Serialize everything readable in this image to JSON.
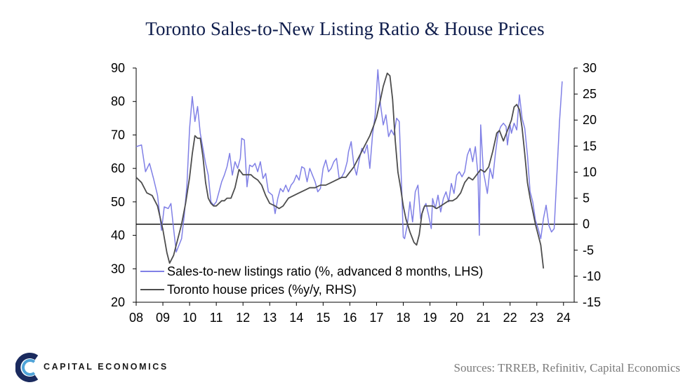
{
  "chart_data": {
    "type": "line",
    "title": "Toronto Sales-to-New Listing Ratio & House Prices",
    "x_tick_labels": [
      "08",
      "09",
      "10",
      "11",
      "12",
      "13",
      "14",
      "15",
      "16",
      "17",
      "18",
      "19",
      "20",
      "21",
      "22",
      "23",
      "24"
    ],
    "xlim": [
      2008,
      2024.4
    ],
    "y_left": {
      "ylim": [
        20,
        90
      ],
      "ticks": [
        "90",
        "80",
        "70",
        "60",
        "50",
        "40",
        "30",
        "20"
      ]
    },
    "y_right": {
      "ylim": [
        -15,
        30
      ],
      "ticks": [
        "30",
        "25",
        "20",
        "15",
        "10",
        "5",
        "0",
        "-5",
        "-10",
        "-15"
      ]
    },
    "zero_line_right": 0,
    "grid": false,
    "legend_position": "bottom-left inside plot",
    "series": [
      {
        "name": "Sales-to-new listings ratio (%, advanced 8 months, LHS)",
        "axis": "left",
        "color": "#8080e6",
        "points": [
          [
            2008.0,
            66.5
          ],
          [
            2008.2,
            67.0
          ],
          [
            2008.35,
            59.0
          ],
          [
            2008.5,
            61.5
          ],
          [
            2008.65,
            57.0
          ],
          [
            2008.8,
            52.0
          ],
          [
            2008.95,
            41.5
          ],
          [
            2009.05,
            48.5
          ],
          [
            2009.2,
            48.0
          ],
          [
            2009.3,
            49.5
          ],
          [
            2009.4,
            42.0
          ],
          [
            2009.5,
            35.0
          ],
          [
            2009.6,
            37.0
          ],
          [
            2009.7,
            39.0
          ],
          [
            2009.8,
            46.0
          ],
          [
            2009.9,
            55.0
          ],
          [
            2010.0,
            72.0
          ],
          [
            2010.1,
            81.5
          ],
          [
            2010.2,
            74.0
          ],
          [
            2010.3,
            78.5
          ],
          [
            2010.4,
            70.5
          ],
          [
            2010.5,
            66.0
          ],
          [
            2010.6,
            61.5
          ],
          [
            2010.7,
            58.0
          ],
          [
            2010.8,
            50.0
          ],
          [
            2010.9,
            49.0
          ],
          [
            2011.0,
            50.0
          ],
          [
            2011.1,
            53.0
          ],
          [
            2011.2,
            56.0
          ],
          [
            2011.3,
            58.0
          ],
          [
            2011.4,
            60.5
          ],
          [
            2011.5,
            64.5
          ],
          [
            2011.6,
            58.0
          ],
          [
            2011.7,
            62.0
          ],
          [
            2011.8,
            60.0
          ],
          [
            2011.9,
            63.0
          ],
          [
            2011.95,
            69.0
          ],
          [
            2012.05,
            68.5
          ],
          [
            2012.15,
            54.5
          ],
          [
            2012.25,
            61.0
          ],
          [
            2012.35,
            60.5
          ],
          [
            2012.45,
            61.5
          ],
          [
            2012.55,
            59.0
          ],
          [
            2012.65,
            62.0
          ],
          [
            2012.75,
            57.0
          ],
          [
            2012.85,
            58.5
          ],
          [
            2012.95,
            53.0
          ],
          [
            2013.1,
            52.0
          ],
          [
            2013.2,
            46.5
          ],
          [
            2013.3,
            51.0
          ],
          [
            2013.4,
            54.0
          ],
          [
            2013.5,
            53.0
          ],
          [
            2013.6,
            55.0
          ],
          [
            2013.7,
            53.0
          ],
          [
            2013.8,
            55.0
          ],
          [
            2013.9,
            56.0
          ],
          [
            2014.0,
            58.0
          ],
          [
            2014.1,
            56.5
          ],
          [
            2014.2,
            60.5
          ],
          [
            2014.3,
            60.0
          ],
          [
            2014.4,
            56.0
          ],
          [
            2014.5,
            60.0
          ],
          [
            2014.6,
            58.0
          ],
          [
            2014.7,
            56.0
          ],
          [
            2014.8,
            53.0
          ],
          [
            2014.9,
            54.0
          ],
          [
            2015.0,
            60.0
          ],
          [
            2015.1,
            62.5
          ],
          [
            2015.2,
            59.0
          ],
          [
            2015.3,
            60.0
          ],
          [
            2015.4,
            62.0
          ],
          [
            2015.5,
            63.0
          ],
          [
            2015.6,
            57.0
          ],
          [
            2015.7,
            57.5
          ],
          [
            2015.8,
            59.0
          ],
          [
            2015.9,
            62.0
          ],
          [
            2015.95,
            65.0
          ],
          [
            2016.05,
            68.0
          ],
          [
            2016.15,
            61.0
          ],
          [
            2016.25,
            58.0
          ],
          [
            2016.35,
            62.5
          ],
          [
            2016.45,
            66.0
          ],
          [
            2016.55,
            64.5
          ],
          [
            2016.65,
            67.0
          ],
          [
            2016.75,
            60.0
          ],
          [
            2016.85,
            70.0
          ],
          [
            2016.95,
            76.0
          ],
          [
            2017.0,
            83.0
          ],
          [
            2017.05,
            89.5
          ],
          [
            2017.15,
            79.0
          ],
          [
            2017.25,
            73.0
          ],
          [
            2017.35,
            76.0
          ],
          [
            2017.45,
            69.5
          ],
          [
            2017.55,
            71.5
          ],
          [
            2017.65,
            70.0
          ],
          [
            2017.75,
            75.0
          ],
          [
            2017.85,
            74.0
          ],
          [
            2017.95,
            52.0
          ],
          [
            2018.0,
            39.5
          ],
          [
            2018.05,
            39.0
          ],
          [
            2018.15,
            43.0
          ],
          [
            2018.25,
            50.0
          ],
          [
            2018.35,
            44.0
          ],
          [
            2018.45,
            53.0
          ],
          [
            2018.55,
            55.0
          ],
          [
            2018.65,
            45.0
          ],
          [
            2018.75,
            48.0
          ],
          [
            2018.85,
            49.5
          ],
          [
            2018.95,
            46.0
          ],
          [
            2019.05,
            42.0
          ],
          [
            2019.1,
            51.0
          ],
          [
            2019.2,
            48.0
          ],
          [
            2019.3,
            52.0
          ],
          [
            2019.4,
            47.0
          ],
          [
            2019.5,
            51.0
          ],
          [
            2019.6,
            53.0
          ],
          [
            2019.7,
            50.0
          ],
          [
            2019.8,
            55.5
          ],
          [
            2019.9,
            52.5
          ],
          [
            2020.0,
            58.0
          ],
          [
            2020.1,
            59.0
          ],
          [
            2020.2,
            57.5
          ],
          [
            2020.3,
            59.0
          ],
          [
            2020.4,
            64.0
          ],
          [
            2020.5,
            66.0
          ],
          [
            2020.6,
            62.0
          ],
          [
            2020.7,
            66.5
          ],
          [
            2020.8,
            58.0
          ],
          [
            2020.85,
            40.0
          ],
          [
            2020.9,
            73.0
          ],
          [
            2021.0,
            59.0
          ],
          [
            2021.05,
            57.0
          ],
          [
            2021.15,
            52.5
          ],
          [
            2021.25,
            60.0
          ],
          [
            2021.35,
            57.0
          ],
          [
            2021.45,
            64.5
          ],
          [
            2021.55,
            70.5
          ],
          [
            2021.65,
            72.5
          ],
          [
            2021.75,
            73.5
          ],
          [
            2021.85,
            72.5
          ],
          [
            2021.9,
            67.0
          ],
          [
            2022.0,
            73.0
          ],
          [
            2022.05,
            70.5
          ],
          [
            2022.15,
            73.5
          ],
          [
            2022.25,
            71.5
          ],
          [
            2022.35,
            82.0
          ],
          [
            2022.45,
            75.0
          ],
          [
            2022.55,
            72.0
          ],
          [
            2022.65,
            64.0
          ],
          [
            2022.75,
            53.0
          ],
          [
            2022.85,
            50.0
          ],
          [
            2022.95,
            44.5
          ],
          [
            2023.05,
            42.0
          ],
          [
            2023.15,
            39.0
          ],
          [
            2023.25,
            45.0
          ],
          [
            2023.35,
            49.0
          ],
          [
            2023.45,
            43.0
          ],
          [
            2023.55,
            41.0
          ],
          [
            2023.65,
            42.0
          ],
          [
            2023.75,
            58.0
          ],
          [
            2023.85,
            74.0
          ],
          [
            2023.95,
            86.0
          ]
        ]
      },
      {
        "name": "Toronto house prices (%y/y, RHS)",
        "axis": "right",
        "color": "#4d4d4d",
        "points": [
          [
            2008.0,
            9.0
          ],
          [
            2008.2,
            8.0
          ],
          [
            2008.4,
            6.0
          ],
          [
            2008.6,
            5.5
          ],
          [
            2008.8,
            3.5
          ],
          [
            2009.0,
            -1.0
          ],
          [
            2009.15,
            -5.5
          ],
          [
            2009.25,
            -7.5
          ],
          [
            2009.4,
            -6.0
          ],
          [
            2009.55,
            -3.0
          ],
          [
            2009.7,
            0.0
          ],
          [
            2009.85,
            4.0
          ],
          [
            2010.0,
            9.0
          ],
          [
            2010.1,
            13.5
          ],
          [
            2010.2,
            17.0
          ],
          [
            2010.3,
            16.5
          ],
          [
            2010.4,
            16.5
          ],
          [
            2010.5,
            13.0
          ],
          [
            2010.6,
            8.0
          ],
          [
            2010.7,
            5.0
          ],
          [
            2010.8,
            4.0
          ],
          [
            2010.9,
            3.5
          ],
          [
            2011.0,
            3.5
          ],
          [
            2011.1,
            4.0
          ],
          [
            2011.2,
            4.5
          ],
          [
            2011.3,
            4.5
          ],
          [
            2011.4,
            5.0
          ],
          [
            2011.55,
            5.0
          ],
          [
            2011.7,
            7.0
          ],
          [
            2011.85,
            10.5
          ],
          [
            2012.0,
            9.5
          ],
          [
            2012.15,
            9.5
          ],
          [
            2012.3,
            9.5
          ],
          [
            2012.4,
            9.0
          ],
          [
            2012.55,
            8.5
          ],
          [
            2012.7,
            7.5
          ],
          [
            2012.85,
            5.5
          ],
          [
            2013.0,
            4.0
          ],
          [
            2013.2,
            3.5
          ],
          [
            2013.35,
            3.0
          ],
          [
            2013.5,
            3.5
          ],
          [
            2013.7,
            5.0
          ],
          [
            2013.9,
            5.5
          ],
          [
            2014.1,
            6.0
          ],
          [
            2014.3,
            6.5
          ],
          [
            2014.5,
            7.0
          ],
          [
            2014.7,
            7.0
          ],
          [
            2014.9,
            7.5
          ],
          [
            2015.1,
            7.5
          ],
          [
            2015.3,
            8.0
          ],
          [
            2015.5,
            8.5
          ],
          [
            2015.7,
            9.0
          ],
          [
            2015.85,
            9.0
          ],
          [
            2016.0,
            10.0
          ],
          [
            2016.15,
            11.0
          ],
          [
            2016.35,
            13.0
          ],
          [
            2016.55,
            15.0
          ],
          [
            2016.75,
            17.0
          ],
          [
            2016.9,
            19.0
          ],
          [
            2017.0,
            20.5
          ],
          [
            2017.15,
            24.0
          ],
          [
            2017.25,
            26.5
          ],
          [
            2017.4,
            29.0
          ],
          [
            2017.5,
            28.5
          ],
          [
            2017.6,
            24.0
          ],
          [
            2017.7,
            16.0
          ],
          [
            2017.8,
            10.0
          ],
          [
            2017.9,
            7.0
          ],
          [
            2018.0,
            3.5
          ],
          [
            2018.1,
            1.0
          ],
          [
            2018.25,
            -1.5
          ],
          [
            2018.4,
            -3.5
          ],
          [
            2018.5,
            -4.0
          ],
          [
            2018.6,
            -2.0
          ],
          [
            2018.7,
            2.0
          ],
          [
            2018.8,
            3.5
          ],
          [
            2018.95,
            3.5
          ],
          [
            2019.1,
            3.5
          ],
          [
            2019.25,
            3.0
          ],
          [
            2019.4,
            3.5
          ],
          [
            2019.55,
            4.0
          ],
          [
            2019.7,
            4.5
          ],
          [
            2019.85,
            4.5
          ],
          [
            2020.0,
            5.0
          ],
          [
            2020.15,
            6.0
          ],
          [
            2020.3,
            8.0
          ],
          [
            2020.45,
            9.0
          ],
          [
            2020.6,
            8.5
          ],
          [
            2020.75,
            9.5
          ],
          [
            2020.9,
            10.5
          ],
          [
            2021.05,
            10.0
          ],
          [
            2021.2,
            11.0
          ],
          [
            2021.35,
            14.0
          ],
          [
            2021.5,
            17.5
          ],
          [
            2021.6,
            18.0
          ],
          [
            2021.75,
            16.0
          ],
          [
            2021.9,
            18.0
          ],
          [
            2022.05,
            20.0
          ],
          [
            2022.15,
            22.5
          ],
          [
            2022.25,
            23.0
          ],
          [
            2022.35,
            22.0
          ],
          [
            2022.45,
            18.5
          ],
          [
            2022.55,
            13.5
          ],
          [
            2022.65,
            8.0
          ],
          [
            2022.75,
            5.0
          ],
          [
            2022.85,
            2.5
          ],
          [
            2022.95,
            0.0
          ],
          [
            2023.05,
            -2.0
          ],
          [
            2023.15,
            -4.0
          ],
          [
            2023.25,
            -8.5
          ]
        ]
      }
    ]
  },
  "footer": {
    "brand": "CAPITAL ECONOMICS",
    "sources": "Sources:  TRREB, Refinitiv, Capital Economics"
  }
}
